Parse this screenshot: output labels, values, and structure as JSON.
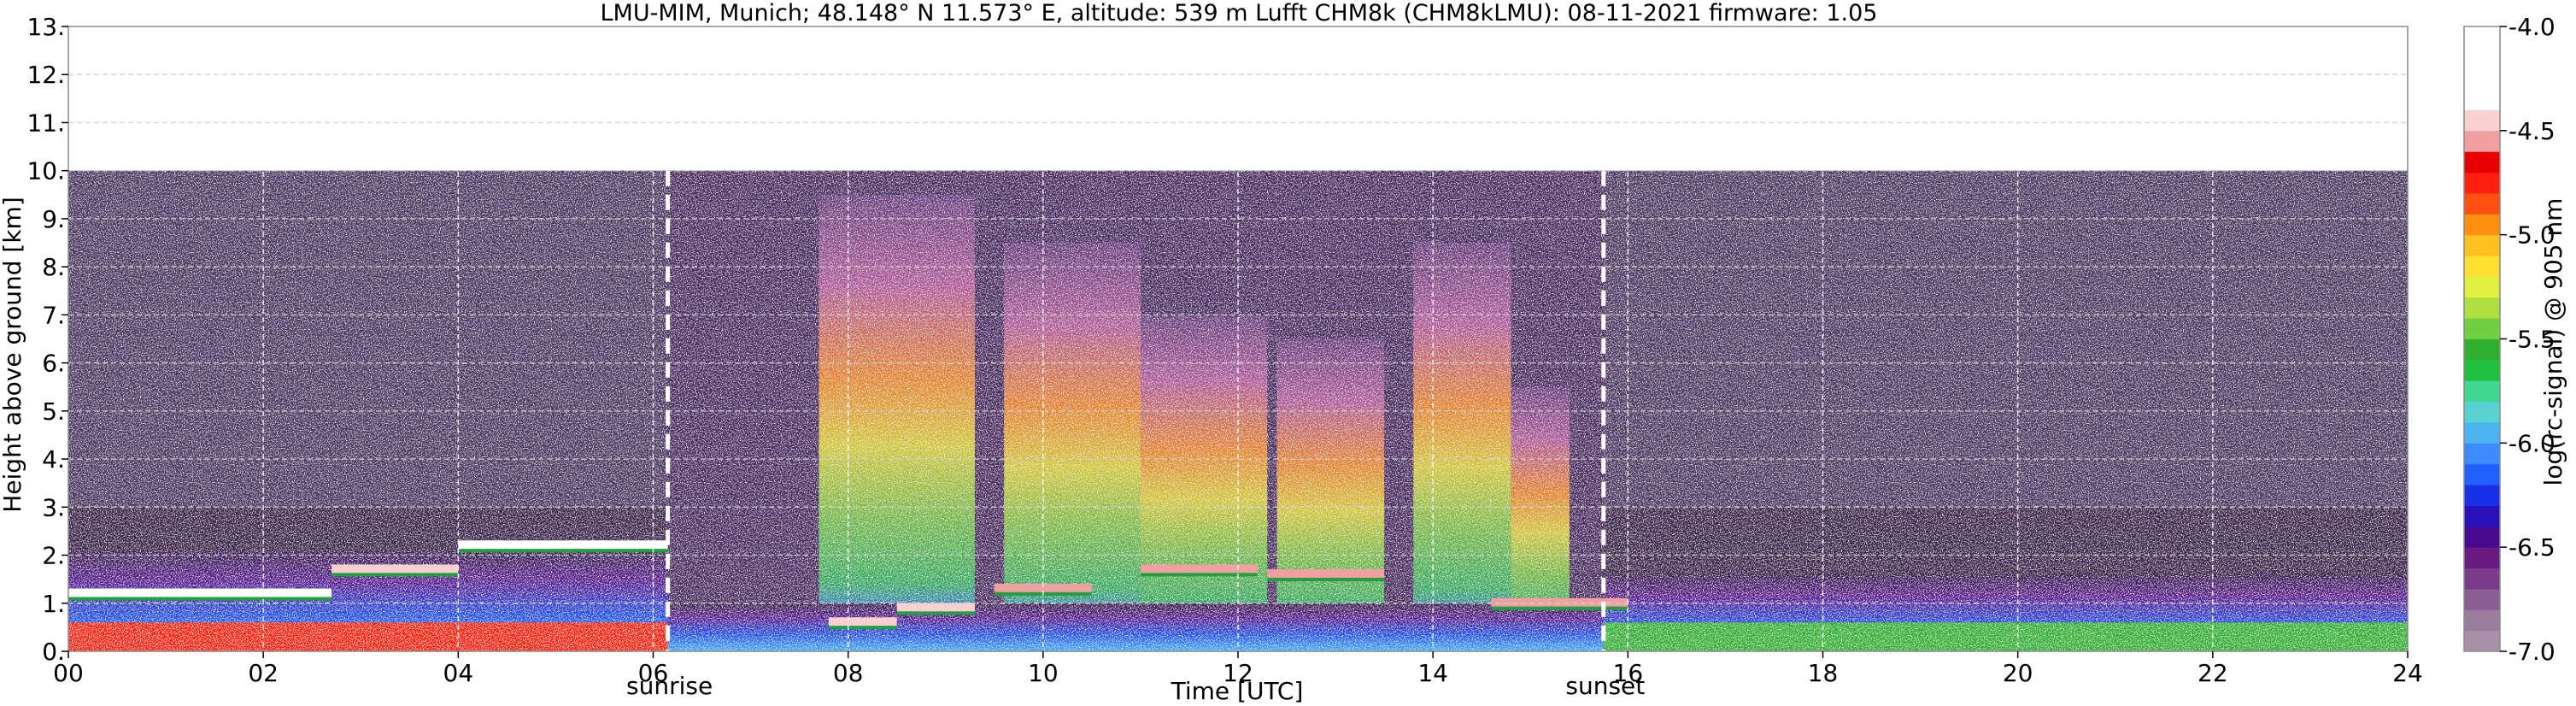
{
  "chart_data": {
    "type": "heatmap",
    "title": "LMU-MIM, Munich; 48.148° N 11.573° E, altitude: 539 m    Lufft CHM8k (CHM8kLMU): 08-11-2021    firmware: 1.05",
    "xlabel": "Time [UTC]",
    "ylabel": "Height above ground [km]",
    "xlim": [
      0,
      24
    ],
    "ylim": [
      0,
      13
    ],
    "grid": true,
    "x_ticks": [
      {
        "value": 0,
        "label": "00"
      },
      {
        "value": 2,
        "label": "02"
      },
      {
        "value": 4,
        "label": "04"
      },
      {
        "value": 6,
        "label": "06"
      },
      {
        "value": 8,
        "label": "08"
      },
      {
        "value": 10,
        "label": "10"
      },
      {
        "value": 12,
        "label": "12"
      },
      {
        "value": 14,
        "label": "14"
      },
      {
        "value": 16,
        "label": "16"
      },
      {
        "value": 18,
        "label": "18"
      },
      {
        "value": 20,
        "label": "20"
      },
      {
        "value": 22,
        "label": "22"
      },
      {
        "value": 24,
        "label": "24"
      }
    ],
    "y_ticks": [
      {
        "value": 0,
        "label": "0."
      },
      {
        "value": 1,
        "label": "1."
      },
      {
        "value": 2,
        "label": "2."
      },
      {
        "value": 3,
        "label": "3."
      },
      {
        "value": 4,
        "label": "4."
      },
      {
        "value": 5,
        "label": "5."
      },
      {
        "value": 6,
        "label": "6."
      },
      {
        "value": 7,
        "label": "7."
      },
      {
        "value": 8,
        "label": "8."
      },
      {
        "value": 9,
        "label": "9."
      },
      {
        "value": 10,
        "label": "10."
      },
      {
        "value": 11,
        "label": "11."
      },
      {
        "value": 12,
        "label": "12."
      },
      {
        "value": 13,
        "label": "13."
      }
    ],
    "data_top_km": 10,
    "annotations": [
      {
        "label": "sunrise",
        "x": 6.15
      },
      {
        "label": "sunset",
        "x": 15.75
      }
    ],
    "colorbar": {
      "label": "log(rc-signal) @ 905 nm",
      "range": [
        -7.0,
        -4.0
      ],
      "ticks": [
        {
          "value": -4.0,
          "label": "-4.0"
        },
        {
          "value": -4.5,
          "label": "-4.5"
        },
        {
          "value": -5.0,
          "label": "-5.0"
        },
        {
          "value": -5.5,
          "label": "-5.5"
        },
        {
          "value": -6.0,
          "label": "-6.0"
        },
        {
          "value": -6.5,
          "label": "-6.5"
        },
        {
          "value": -7.0,
          "label": "-7.0"
        }
      ],
      "colors": [
        "#a890a8",
        "#9a7e9c",
        "#8a5e92",
        "#7a3c8a",
        "#6a1a80",
        "#4a0a90",
        "#2a10b8",
        "#1830e8",
        "#2060ff",
        "#3c8cff",
        "#4cb4f0",
        "#58d4d0",
        "#40d890",
        "#20c040",
        "#30b030",
        "#70d040",
        "#b0e040",
        "#e0f040",
        "#ffe030",
        "#ffc020",
        "#ff9010",
        "#ff5010",
        "#ff2010",
        "#e80000",
        "#f0a0a0",
        "#f8d0d0",
        "#ffffff",
        "#ffffff",
        "#ffffff",
        "#ffffff"
      ]
    },
    "profile_regions": [
      {
        "name": "night-boundary-layer",
        "x": [
          0,
          6.15
        ],
        "top_km": 2.1,
        "value_range": [
          -6.4,
          -4.8
        ]
      },
      {
        "name": "daytime-convective-layer",
        "x": [
          6.15,
          15.75
        ],
        "top_km": 10,
        "value_range": [
          -6.6,
          -5.0
        ]
      },
      {
        "name": "evening-residual-layer",
        "x": [
          15.75,
          24
        ],
        "top_km": 1.6,
        "value_range": [
          -6.6,
          -5.6
        ]
      }
    ],
    "cloud_bases": [
      {
        "x": [
          0.0,
          2.7
        ],
        "y_km": 1.2,
        "value": -4.2
      },
      {
        "x": [
          2.7,
          4.0
        ],
        "y_km": 1.7,
        "value": -4.4
      },
      {
        "x": [
          4.0,
          6.15
        ],
        "y_km": 2.2,
        "value": -4.3
      },
      {
        "x": [
          7.8,
          8.5
        ],
        "y_km": 0.6,
        "value": -4.5
      },
      {
        "x": [
          8.5,
          9.3
        ],
        "y_km": 0.9,
        "value": -4.5
      },
      {
        "x": [
          9.5,
          10.5
        ],
        "y_km": 1.3,
        "value": -4.6
      },
      {
        "x": [
          11.0,
          12.2
        ],
        "y_km": 1.7,
        "value": -4.6
      },
      {
        "x": [
          12.3,
          13.5
        ],
        "y_km": 1.6,
        "value": -4.6
      },
      {
        "x": [
          14.6,
          16.0
        ],
        "y_km": 1.0,
        "value": -4.6
      }
    ]
  }
}
